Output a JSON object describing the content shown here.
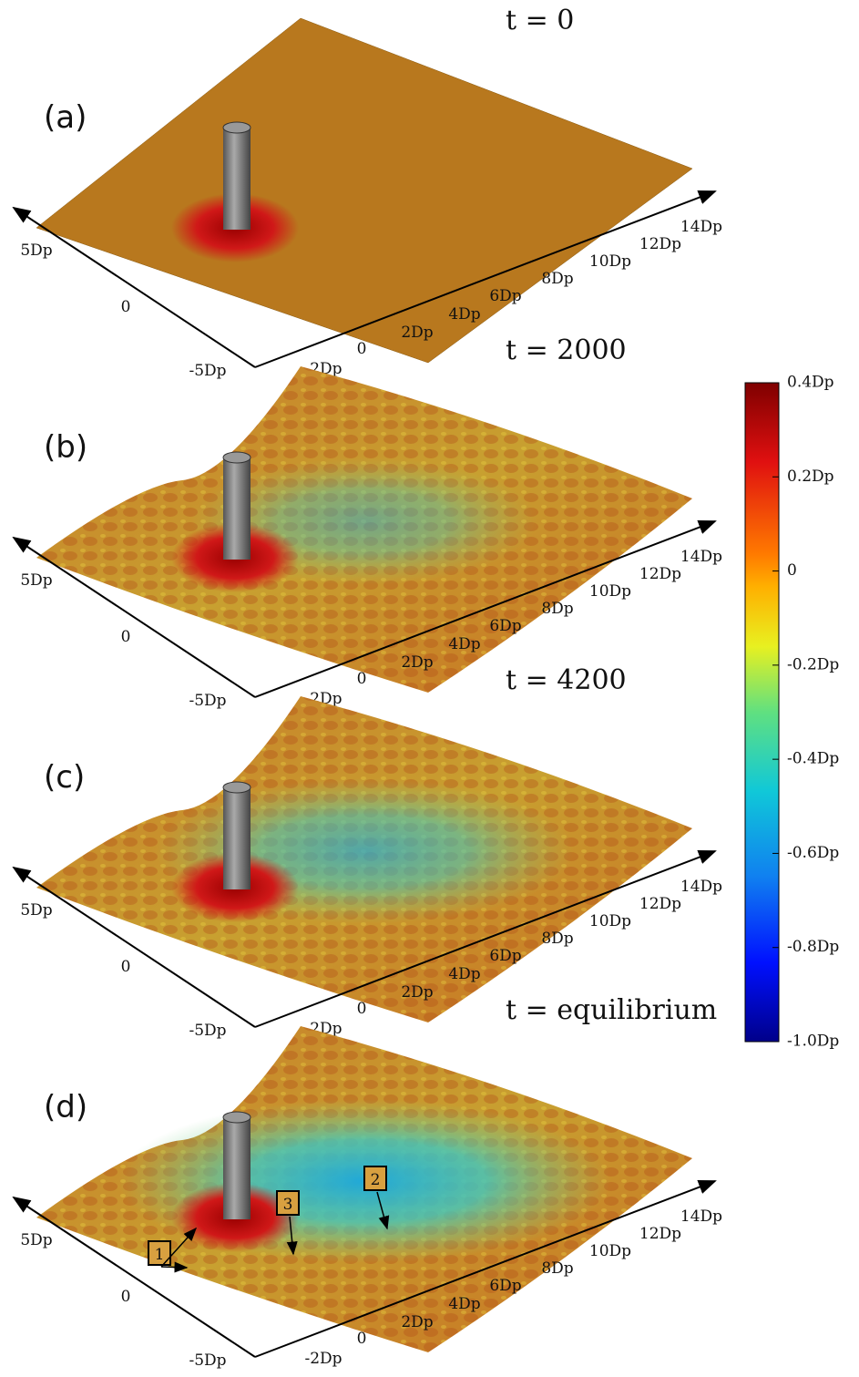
{
  "panels": [
    {
      "label": "(a)",
      "time": "t = 0"
    },
    {
      "label": "(b)",
      "time": "t = 2000"
    },
    {
      "label": "(c)",
      "time": "t = 4200"
    },
    {
      "label": "(d)",
      "time": "t = equilibrium"
    }
  ],
  "x_axis_labels": [
    "-2Dp",
    "0",
    "2Dp",
    "4Dp",
    "6Dp",
    "8Dp",
    "10Dp",
    "12Dp",
    "14Dp"
  ],
  "y_axis_labels": [
    "-5Dp",
    "0",
    "5Dp"
  ],
  "annotations": [
    "1",
    "3",
    "2"
  ],
  "colorbar": {
    "lim": [
      -1.0,
      0.4
    ],
    "ticks": [
      {
        "value": 0.4,
        "label": "0.4Dp"
      },
      {
        "value": 0.2,
        "label": "0.2Dp"
      },
      0,
      {
        "value": -0.2,
        "label": "-0.2Dp"
      },
      {
        "value": -0.4,
        "label": "-0.4Dp"
      },
      {
        "value": -0.6,
        "label": "-0.6Dp"
      },
      {
        "value": -0.8,
        "label": "-0.8Dp"
      },
      {
        "value": -1.0,
        "label": "-1.0Dp"
      }
    ]
  }
}
